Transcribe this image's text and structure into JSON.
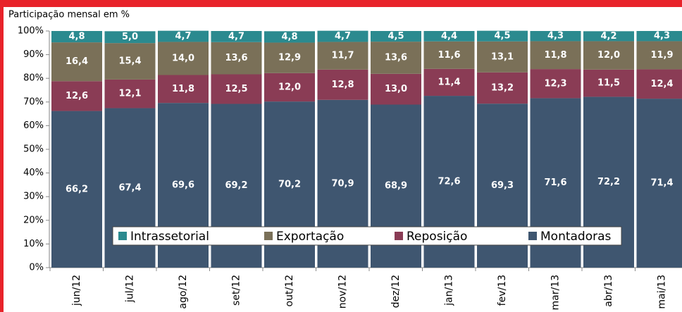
{
  "chart_data": {
    "type": "bar",
    "stacked": true,
    "subtitle": "Participação mensal em %",
    "categories": [
      "jun/12",
      "jul/12",
      "ago/12",
      "set/12",
      "out/12",
      "nov/12",
      "dez/12",
      "jan/13",
      "fev/13",
      "mar/13",
      "abr/13",
      "mai/13"
    ],
    "series": [
      {
        "name": "Montadoras",
        "color": "#3f5670",
        "values": [
          66.2,
          67.4,
          69.6,
          69.2,
          70.2,
          70.9,
          68.9,
          72.6,
          69.3,
          71.6,
          72.2,
          71.4
        ],
        "value_labels": [
          "66,2",
          "67,4",
          "69,6",
          "69,2",
          "70,2",
          "70,9",
          "68,9",
          "72,6",
          "69,3",
          "71,6",
          "72,2",
          "71,4"
        ]
      },
      {
        "name": "Reposição",
        "color": "#8a3c55",
        "values": [
          12.6,
          12.1,
          11.8,
          12.5,
          12.0,
          12.8,
          13.0,
          11.4,
          13.2,
          12.3,
          11.5,
          12.4
        ],
        "value_labels": [
          "12,6",
          "12,1",
          "11,8",
          "12,5",
          "12,0",
          "12,8",
          "13,0",
          "11,4",
          "13,2",
          "12,3",
          "11,5",
          "12,4"
        ]
      },
      {
        "name": "Exportação",
        "color": "#7a7058",
        "values": [
          16.4,
          15.4,
          14.0,
          13.6,
          12.9,
          11.7,
          13.6,
          11.6,
          13.1,
          11.8,
          12.0,
          11.9
        ],
        "value_labels": [
          "16,4",
          "15,4",
          "14,0",
          "13,6",
          "12,9",
          "11,7",
          "13,6",
          "11,6",
          "13,1",
          "11,8",
          "12,0",
          "11,9"
        ]
      },
      {
        "name": "Intrassetorial",
        "color": "#2b8a8f",
        "values": [
          4.8,
          5.0,
          4.7,
          4.7,
          4.8,
          4.7,
          4.5,
          4.4,
          4.5,
          4.3,
          4.2,
          4.3
        ],
        "value_labels": [
          "4,8",
          "5,0",
          "4,7",
          "4,7",
          "4,8",
          "4,7",
          "4,5",
          "4,4",
          "4,5",
          "4,3",
          "4,2",
          "4,3"
        ]
      }
    ],
    "ylim": [
      0,
      100
    ],
    "yticks": [
      {
        "value": 0,
        "label": "0%"
      },
      {
        "value": 10,
        "label": "10%"
      },
      {
        "value": 20,
        "label": "20%"
      },
      {
        "value": 30,
        "label": "30%"
      },
      {
        "value": 40,
        "label": "40%"
      },
      {
        "value": 50,
        "label": "50%"
      },
      {
        "value": 60,
        "label": "60%"
      },
      {
        "value": 70,
        "label": "70%"
      },
      {
        "value": 80,
        "label": "80%"
      },
      {
        "value": 90,
        "label": "90%"
      },
      {
        "value": 100,
        "label": "100%"
      }
    ],
    "grid": false,
    "legend": "bottom"
  }
}
